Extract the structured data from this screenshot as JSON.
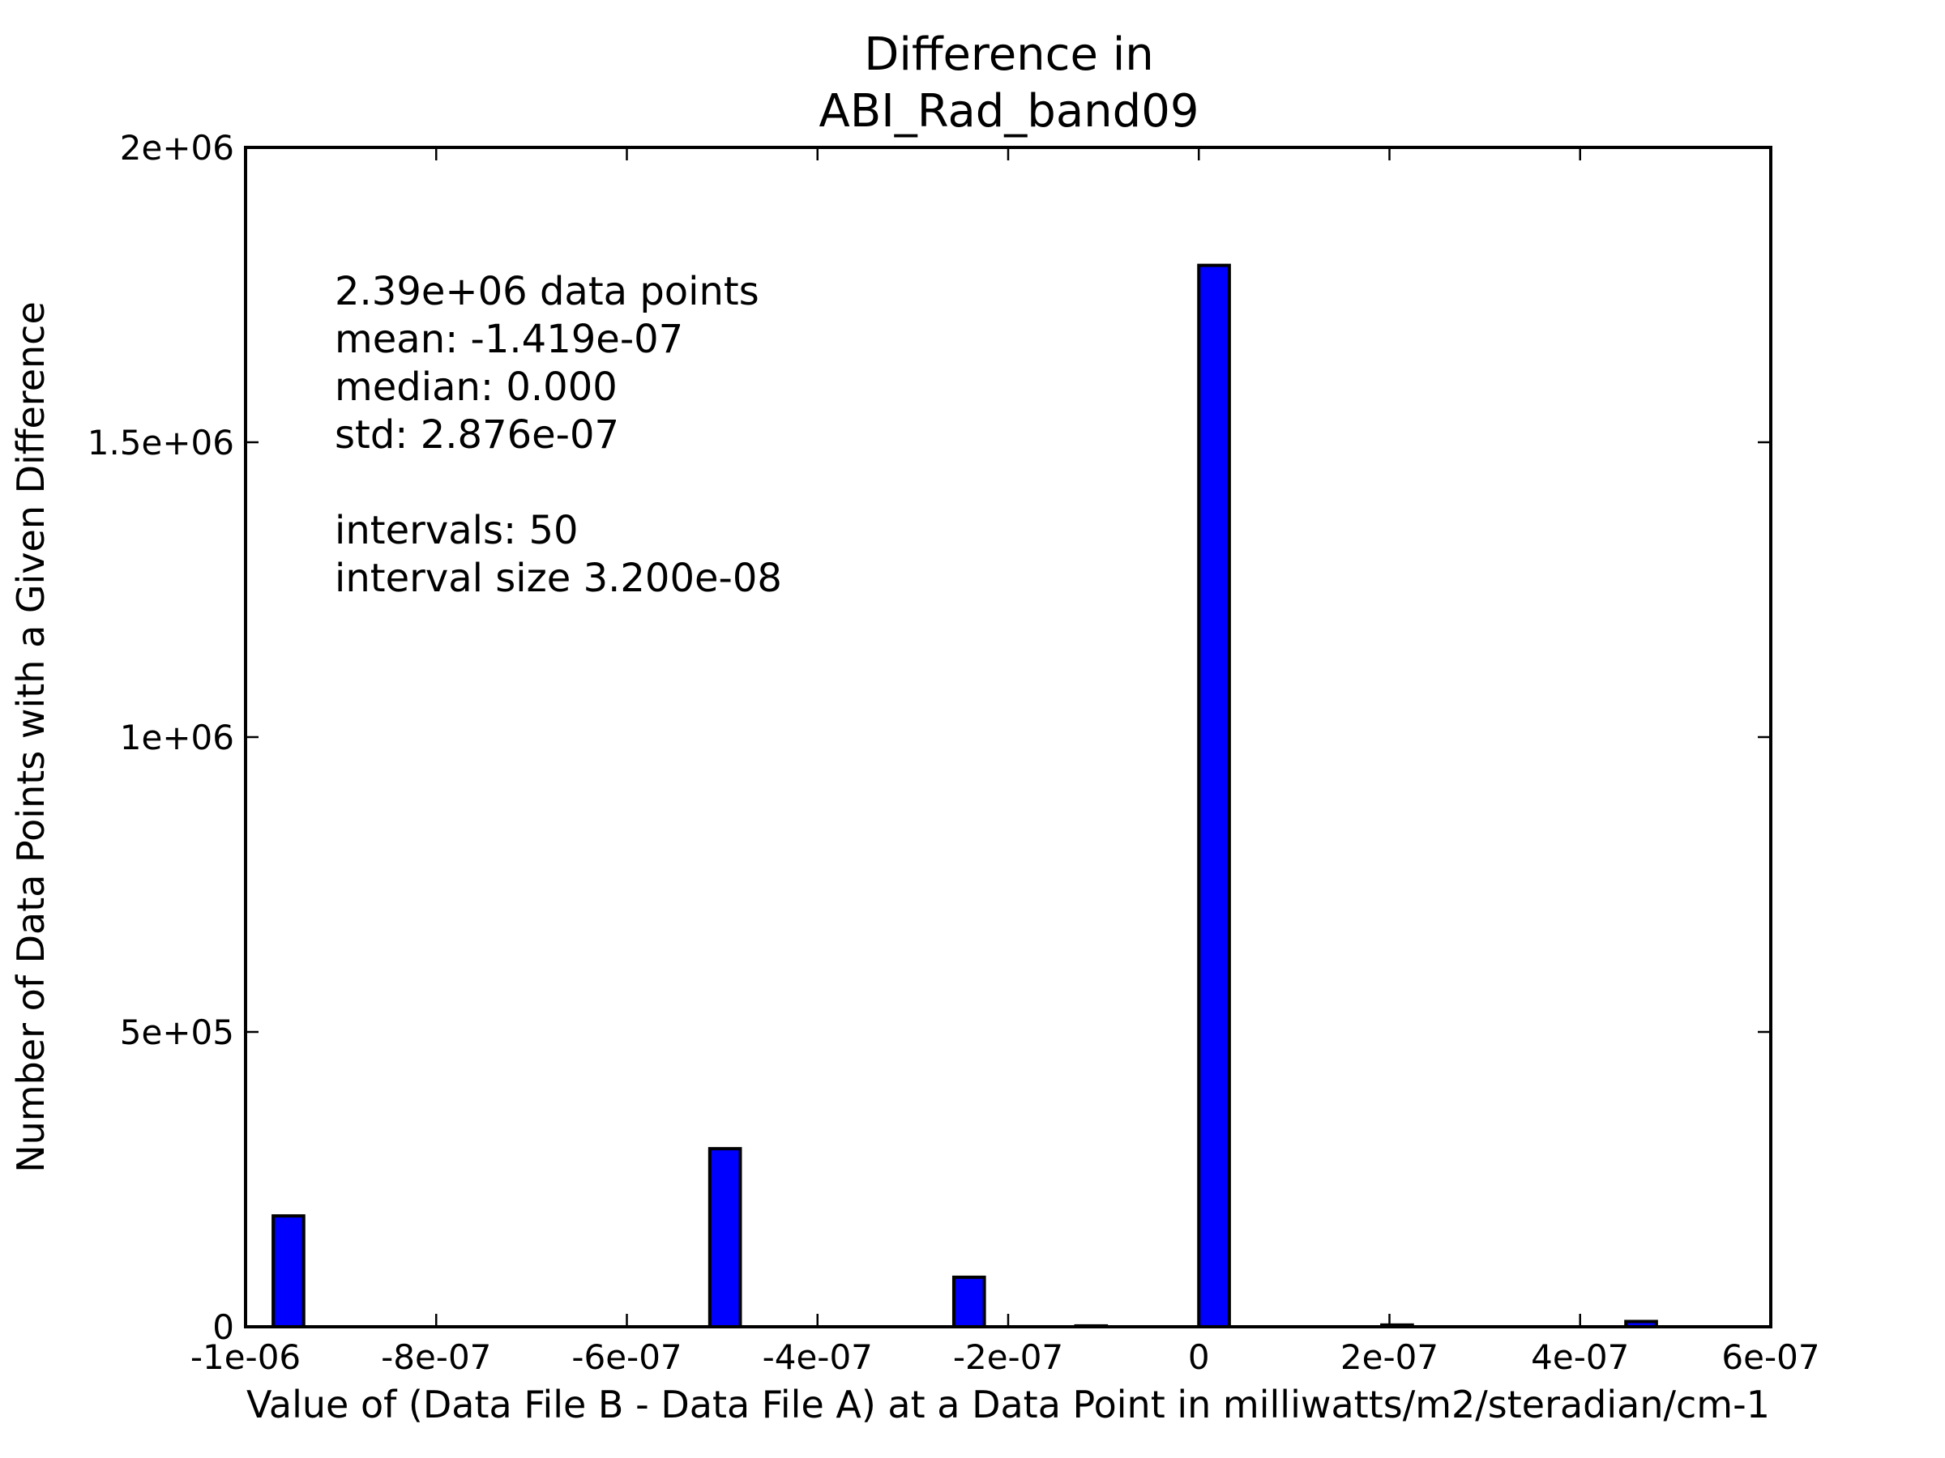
{
  "chart_data": {
    "type": "bar",
    "title": [
      "Difference in",
      "ABI_Rad_band09"
    ],
    "xlabel": "Value of (Data File B - Data File A) at a Data Point in milliwatts/m2/steradian/cm-1",
    "ylabel": "Number of Data Points with a Given Difference",
    "xlim": [
      -1e-06,
      6e-07
    ],
    "ylim": [
      0,
      2000000
    ],
    "x_ticks": [
      {
        "value": -1e-06,
        "label": "-1e-06"
      },
      {
        "value": -8e-07,
        "label": "-8e-07"
      },
      {
        "value": -6e-07,
        "label": "-6e-07"
      },
      {
        "value": -4e-07,
        "label": "-4e-07"
      },
      {
        "value": -2e-07,
        "label": "-2e-07"
      },
      {
        "value": 0,
        "label": "0"
      },
      {
        "value": 2e-07,
        "label": "2e-07"
      },
      {
        "value": 4e-07,
        "label": "4e-07"
      },
      {
        "value": 6e-07,
        "label": "6e-07"
      }
    ],
    "y_ticks": [
      {
        "value": 0,
        "label": "0"
      },
      {
        "value": 500000,
        "label": "5e+05"
      },
      {
        "value": 1000000,
        "label": "1e+06"
      },
      {
        "value": 1500000,
        "label": "1.5e+06"
      },
      {
        "value": 2000000,
        "label": "2e+06"
      }
    ],
    "bar_width": 3.2e-08,
    "bars": [
      {
        "x": -9.55e-07,
        "value": 188000
      },
      {
        "x": -4.97e-07,
        "value": 302000
      },
      {
        "x": -2.41e-07,
        "value": 84000
      },
      {
        "x": -1.13e-07,
        "value": 1500
      },
      {
        "x": 1.6e-08,
        "value": 1800000
      },
      {
        "x": 2.08e-07,
        "value": 3000
      },
      {
        "x": 4.64e-07,
        "value": 9000
      }
    ],
    "annotation_lines": [
      "2.39e+06 data points",
      "mean: -1.419e-07",
      "median: 0.000",
      "std: 2.876e-07",
      "",
      "intervals: 50",
      "interval size 3.200e-08"
    ],
    "bar_color": "#0000ff",
    "edge_color": "#000000",
    "grid": false,
    "legend": "none"
  }
}
